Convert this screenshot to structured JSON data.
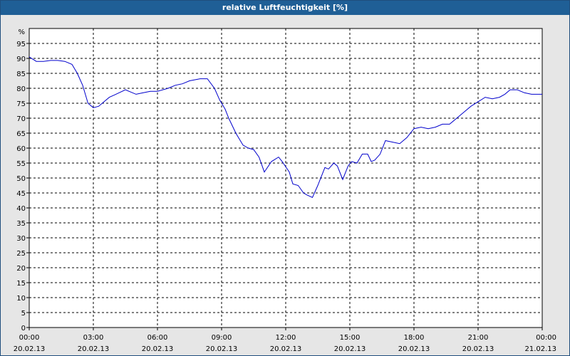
{
  "chart_data": {
    "type": "line",
    "title": "relative Luftfeuchtigkeit [%]",
    "ylabel": "%",
    "xlabel": "",
    "ylim": [
      0,
      100
    ],
    "xlim": [
      "2013-02-20 00:00",
      "2013-02-21 00:00"
    ],
    "grid": true,
    "line_color": "#0000cc",
    "x_ticks": [
      {
        "time": "00:00",
        "date": "20.02.13"
      },
      {
        "time": "03:00",
        "date": "20.02.13"
      },
      {
        "time": "06:00",
        "date": "20.02.13"
      },
      {
        "time": "09:00",
        "date": "20.02.13"
      },
      {
        "time": "12:00",
        "date": "20.02.13"
      },
      {
        "time": "15:00",
        "date": "20.02.13"
      },
      {
        "time": "18:00",
        "date": "20.02.13"
      },
      {
        "time": "21:00",
        "date": "20.02.13"
      },
      {
        "time": "00:00",
        "date": "21.02.13"
      }
    ],
    "y_ticks": [
      0,
      5,
      10,
      15,
      20,
      25,
      30,
      35,
      40,
      45,
      50,
      55,
      60,
      65,
      70,
      75,
      80,
      85,
      90,
      95
    ],
    "series": [
      {
        "x": [
          "00:00",
          "00:20",
          "00:40",
          "01:00",
          "01:20",
          "01:40",
          "02:00",
          "02:15",
          "02:30",
          "02:45",
          "03:00",
          "03:15",
          "03:30",
          "03:45",
          "04:00",
          "04:30",
          "05:00",
          "05:20",
          "05:40",
          "06:00",
          "06:30",
          "06:50",
          "07:10",
          "07:30",
          "08:00",
          "08:20",
          "08:40",
          "08:55",
          "09:10",
          "09:20",
          "09:40",
          "10:00",
          "10:15",
          "10:30",
          "10:45",
          "11:00",
          "11:20",
          "11:40",
          "11:50",
          "12:10",
          "12:20",
          "12:35",
          "12:50",
          "13:00",
          "13:15",
          "13:30",
          "13:50",
          "14:00",
          "14:15",
          "14:25",
          "14:40",
          "14:55",
          "15:05",
          "15:20",
          "15:35",
          "15:50",
          "16:00",
          "16:10",
          "16:25",
          "16:40",
          "17:00",
          "17:20",
          "17:40",
          "18:00",
          "18:20",
          "18:40",
          "19:00",
          "19:20",
          "19:40",
          "20:00",
          "20:20",
          "20:40",
          "21:00",
          "21:20",
          "21:40",
          "22:00",
          "22:15",
          "22:30",
          "22:50",
          "23:10",
          "23:30",
          "23:45",
          "24:00"
        ],
        "values": [
          90.5,
          89,
          89,
          89.3,
          89.3,
          89,
          88,
          85,
          81,
          75,
          73.5,
          74,
          75.5,
          77,
          77.8,
          79.5,
          78,
          78.5,
          79,
          79,
          80,
          81,
          81.5,
          82.5,
          83.2,
          83.2,
          80,
          76,
          73,
          70,
          65,
          61,
          60,
          59.5,
          57,
          52,
          55.5,
          57,
          55.5,
          52,
          48,
          47.5,
          45,
          44.3,
          43.5,
          47.5,
          53.5,
          53,
          55,
          54,
          49.5,
          54,
          55.5,
          55,
          58,
          58,
          55.5,
          56,
          58,
          62.5,
          62,
          61.5,
          63.5,
          66.5,
          67,
          66.5,
          67,
          68,
          68,
          70,
          72,
          74,
          75.5,
          77,
          76.5,
          77,
          78,
          79.5,
          79.5,
          78.5,
          78,
          78,
          78
        ]
      }
    ]
  }
}
